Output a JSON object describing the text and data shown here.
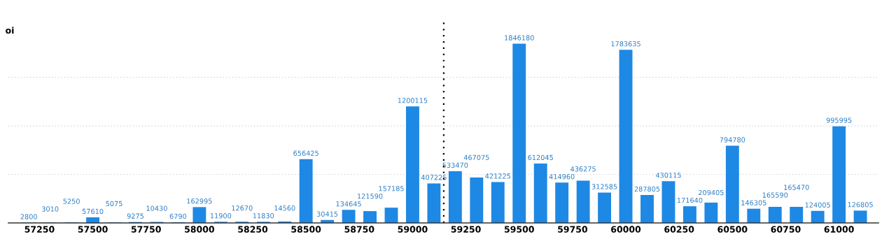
{
  "chart_data": {
    "type": "bar",
    "ylabel": "oi",
    "x": [
      57200,
      57300,
      57400,
      57500,
      57600,
      57700,
      57800,
      57900,
      58000,
      58100,
      58200,
      58300,
      58400,
      58500,
      58600,
      58700,
      58800,
      58900,
      59000,
      59100,
      59200,
      59300,
      59400,
      59500,
      59600,
      59700,
      59800,
      59900,
      60000,
      60100,
      60200,
      60300,
      60400,
      60500,
      60600,
      60700,
      60800,
      60900,
      61000,
      61100
    ],
    "values": [
      2800,
      3010,
      5250,
      57610,
      5075,
      9275,
      10430,
      6790,
      162995,
      11900,
      12670,
      11830,
      14560,
      656425,
      30415,
      134645,
      121590,
      157185,
      1200115,
      407225,
      533470,
      467075,
      421225,
      1846180,
      612045,
      414960,
      436275,
      312585,
      1783635,
      287805,
      430115,
      171640,
      209405,
      794780,
      146305,
      165590,
      165470,
      124005,
      995995,
      126805
    ],
    "color": "#1e88e5",
    "data_labels": true,
    "xlim": [
      57104,
      61185
    ],
    "xticks": [
      57250,
      57500,
      57750,
      58000,
      58250,
      58500,
      58750,
      59000,
      59250,
      59500,
      59750,
      60000,
      60250,
      60500,
      60750,
      61000
    ],
    "ylim": [
      0,
      2080000
    ],
    "yticks": [
      {
        "value": 500000,
        "label": null
      },
      {
        "value": 1000000,
        "label": null
      },
      {
        "value": 1500000,
        "label": null
      }
    ],
    "grid": "y",
    "tick_labels": "x",
    "ref_lines": [
      {
        "axis": "x",
        "value": 59146,
        "label": null,
        "color": "#000000",
        "line_style": "dotted"
      }
    ]
  }
}
